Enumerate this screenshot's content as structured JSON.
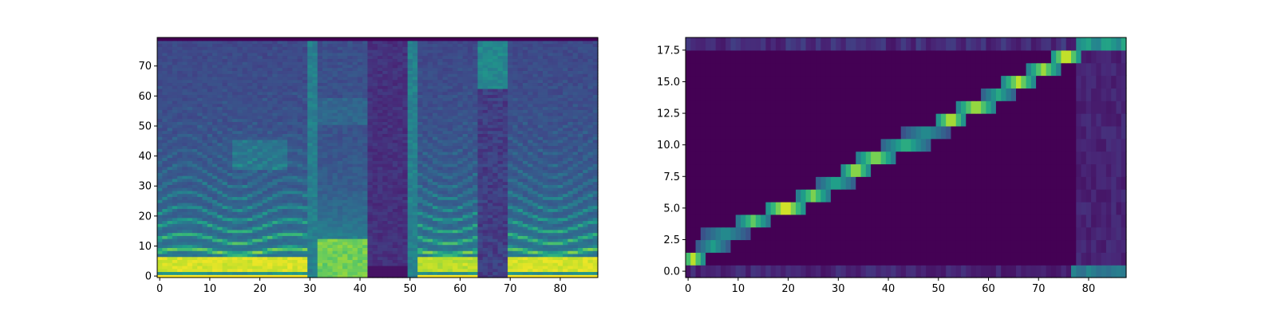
{
  "chart_data": [
    {
      "type": "heatmap",
      "title": "",
      "xlabel": "",
      "ylabel": "",
      "xlim": [
        -0.5,
        87.5
      ],
      "ylim": [
        -0.5,
        79.5
      ],
      "xticks": [
        0,
        10,
        20,
        30,
        40,
        50,
        60,
        70,
        80
      ],
      "xtick_labels": [
        "0",
        "10",
        "20",
        "30",
        "40",
        "50",
        "60",
        "70",
        "80"
      ],
      "yticks": [
        0,
        10,
        20,
        30,
        40,
        50,
        60,
        70
      ],
      "ytick_labels": [
        "0",
        "10",
        "20",
        "30",
        "40",
        "50",
        "60",
        "70"
      ],
      "colormap": "viridis",
      "frames": 88,
      "bins": 80,
      "segments": [
        {
          "start": 0,
          "end": 29,
          "kind": "voiced",
          "strength": 1.0
        },
        {
          "start": 30,
          "end": 31,
          "kind": "burst",
          "strength": 0.45
        },
        {
          "start": 32,
          "end": 41,
          "kind": "fricative",
          "strength": 0.85
        },
        {
          "start": 42,
          "end": 49,
          "kind": "low",
          "strength": 0.25
        },
        {
          "start": 50,
          "end": 51,
          "kind": "burst",
          "strength": 0.5
        },
        {
          "start": 52,
          "end": 63,
          "kind": "voiced",
          "strength": 0.95
        },
        {
          "start": 64,
          "end": 69,
          "kind": "fricative-high",
          "strength": 0.6
        },
        {
          "start": 70,
          "end": 87,
          "kind": "voiced",
          "strength": 1.0
        }
      ]
    },
    {
      "type": "heatmap",
      "title": "",
      "xlabel": "",
      "ylabel": "",
      "xlim": [
        -0.5,
        87.5
      ],
      "ylim": [
        -0.5,
        18.5
      ],
      "xticks": [
        0,
        10,
        20,
        30,
        40,
        50,
        60,
        70,
        80
      ],
      "xtick_labels": [
        "0",
        "10",
        "20",
        "30",
        "40",
        "50",
        "60",
        "70",
        "80"
      ],
      "yticks": [
        0.0,
        2.5,
        5.0,
        7.5,
        10.0,
        12.5,
        15.0,
        17.5
      ],
      "ytick_labels": [
        "0.0",
        "2.5",
        "5.0",
        "7.5",
        "10.0",
        "12.5",
        "15.0",
        "17.5"
      ],
      "colormap": "viridis",
      "frames": 88,
      "tokens": 19,
      "alignment_path": [
        {
          "token": 1,
          "start": 0,
          "end": 2,
          "peak": 0.9
        },
        {
          "token": 2,
          "start": 3,
          "end": 7,
          "peak": 0.55
        },
        {
          "token": 3,
          "start": 4,
          "end": 11,
          "peak": 0.5
        },
        {
          "token": 4,
          "start": 11,
          "end": 15,
          "peak": 0.75
        },
        {
          "token": 5,
          "start": 17,
          "end": 22,
          "peak": 1.0
        },
        {
          "token": 6,
          "start": 23,
          "end": 27,
          "peak": 0.8
        },
        {
          "token": 7,
          "start": 27,
          "end": 32,
          "peak": 0.6
        },
        {
          "token": 8,
          "start": 32,
          "end": 35,
          "peak": 0.9
        },
        {
          "token": 9,
          "start": 35,
          "end": 40,
          "peak": 0.85
        },
        {
          "token": 10,
          "start": 40,
          "end": 47,
          "peak": 0.65
        },
        {
          "token": 11,
          "start": 44,
          "end": 51,
          "peak": 0.5
        },
        {
          "token": 12,
          "start": 51,
          "end": 54,
          "peak": 0.95
        },
        {
          "token": 13,
          "start": 55,
          "end": 60,
          "peak": 0.9
        },
        {
          "token": 14,
          "start": 60,
          "end": 64,
          "peak": 0.6
        },
        {
          "token": 15,
          "start": 64,
          "end": 68,
          "peak": 0.9
        },
        {
          "token": 16,
          "start": 69,
          "end": 73,
          "peak": 0.85
        },
        {
          "token": 17,
          "start": 74,
          "end": 77,
          "peak": 1.0
        }
      ],
      "edge_rows": [
        {
          "token": 0,
          "level": 0.12,
          "tail_start": 77,
          "tail_level": 0.45
        },
        {
          "token": 18,
          "level": 0.15,
          "tail_start": 78,
          "tail_level": 0.55
        }
      ]
    }
  ]
}
